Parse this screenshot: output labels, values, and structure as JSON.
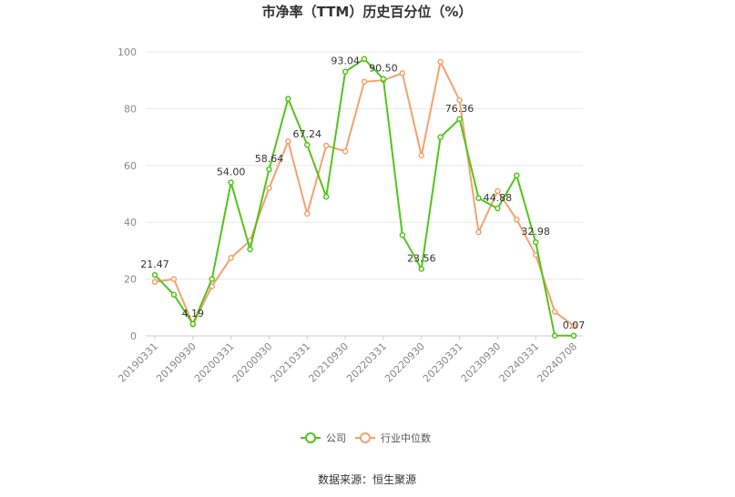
{
  "chart_data": {
    "type": "line",
    "title": "市净率（TTM）历史百分位（%）",
    "source": "数据来源：恒生聚源",
    "ylim": [
      0,
      100
    ],
    "yticks": [
      0,
      20,
      40,
      60,
      80,
      100
    ],
    "grid": true,
    "legend_position": "bottom",
    "tick_labels": [
      "20190331",
      "20190930",
      "20200331",
      "20200930",
      "20210331",
      "20210930",
      "20220331",
      "20220930",
      "20230331",
      "20230930",
      "20240331",
      "20240708"
    ],
    "series": [
      {
        "name": "公司",
        "color": "#52c41a",
        "values": [
          21.47,
          14.5,
          4.19,
          20.0,
          54.0,
          30.5,
          58.64,
          83.5,
          67.24,
          49.0,
          93.04,
          97.5,
          90.5,
          35.5,
          23.56,
          70.0,
          76.36,
          48.5,
          44.88,
          56.5,
          32.98,
          0.1,
          0.07
        ],
        "labeled_indices": [
          0,
          2,
          4,
          6,
          8,
          10,
          12,
          14,
          16,
          18,
          20,
          22
        ]
      },
      {
        "name": "行业中位数",
        "color": "#f4a16d",
        "values": [
          19.0,
          20.0,
          4.0,
          17.5,
          27.5,
          33.5,
          52.0,
          68.5,
          43.0,
          67.0,
          65.0,
          89.5,
          90.0,
          92.5,
          63.5,
          96.5,
          83.0,
          36.5,
          51.0,
          41.0,
          28.5,
          8.5,
          3.5
        ]
      }
    ],
    "data_labels": [
      "21.47",
      "4.19",
      "54.00",
      "58.64",
      "67.24",
      "93.04",
      "90.50",
      "23.56",
      "76.36",
      "44.88",
      "32.98",
      "0.07"
    ]
  }
}
